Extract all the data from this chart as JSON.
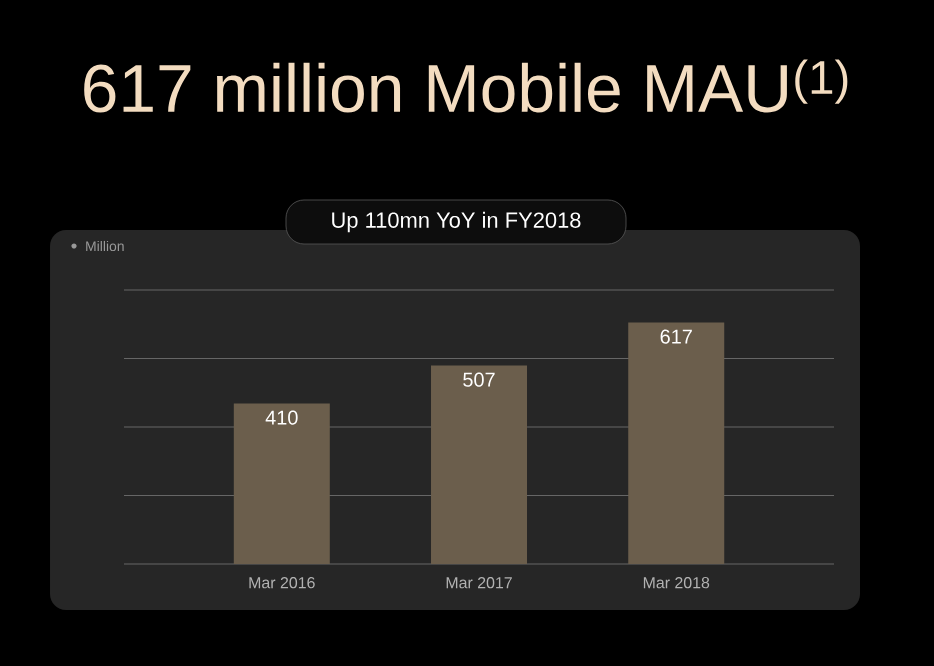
{
  "chart_data": {
    "type": "bar",
    "title": "617 million Mobile MAU$^{(1)}$",
    "subtitle": "Up 110mn YoY in FY2018",
    "ylabel": "Million",
    "categories": [
      "Mar 2016",
      "Mar 2017",
      "Mar 2018"
    ],
    "values": [
      410,
      507,
      617
    ],
    "color": "#6b5e4c",
    "ylim": [
      0,
      700
    ],
    "yticks": [
      {
        "value": 0,
        "label": null
      },
      {
        "value": 175,
        "label": null
      },
      {
        "value": 350,
        "label": null
      },
      {
        "value": 525,
        "label": null
      },
      {
        "value": 700,
        "label": null
      }
    ],
    "grid": "y",
    "tick_labels": "x",
    "data_labels": true
  }
}
